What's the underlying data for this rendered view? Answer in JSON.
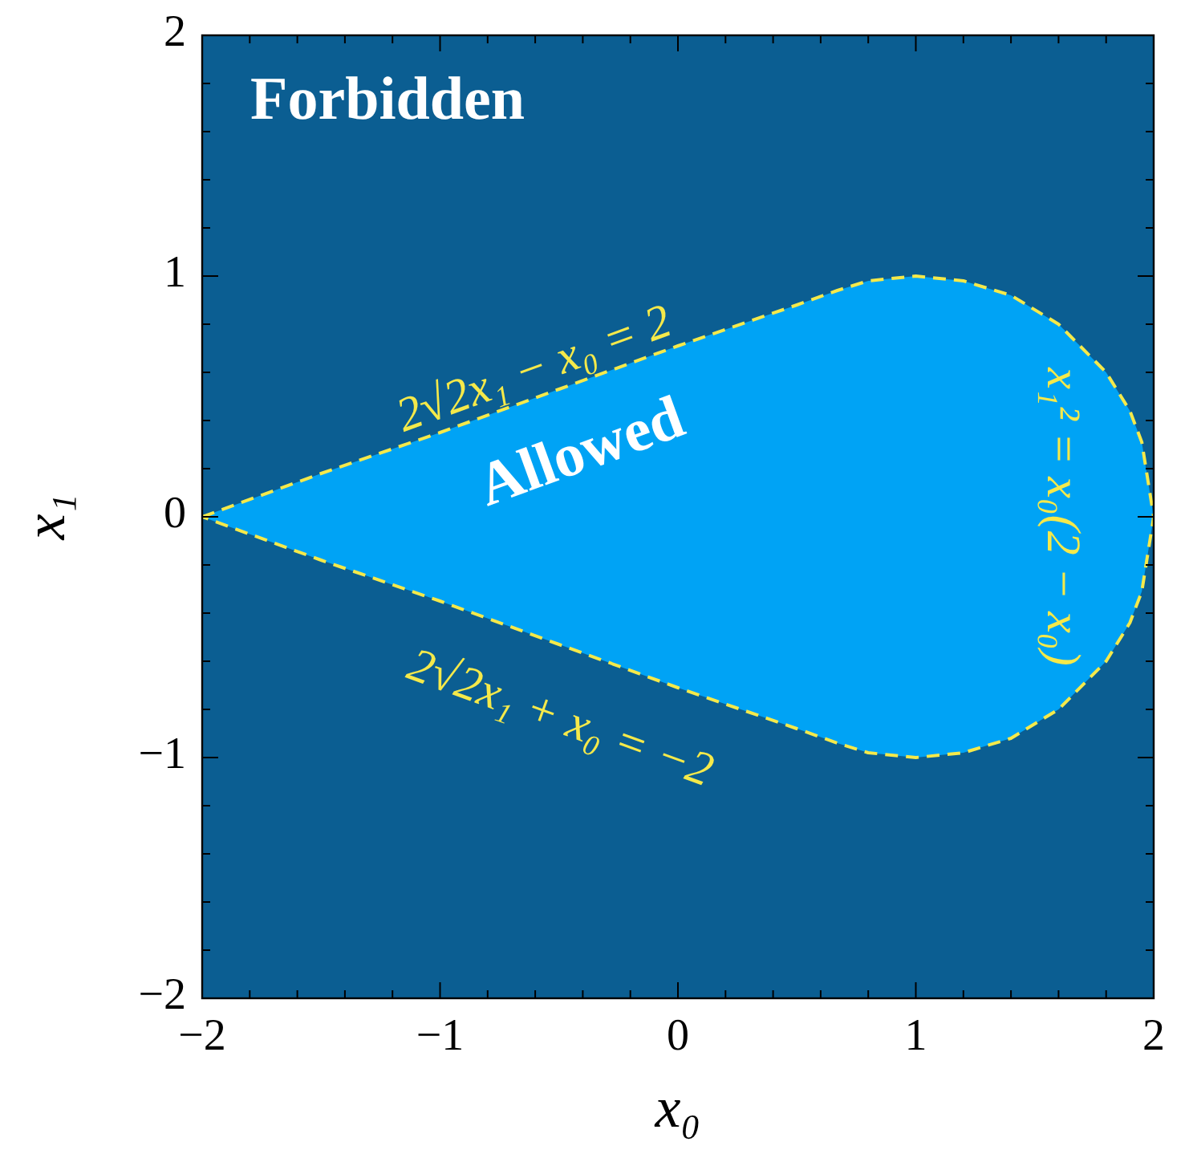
{
  "chart_data": {
    "type": "area",
    "xlabel": "x₀",
    "ylabel": "x₁",
    "series": [
      {
        "color": "#00a3f5",
        "line_style": "dashed",
        "x": [
          -2,
          -1.5,
          -1,
          -0.5,
          0,
          0.5,
          0.67,
          0.8,
          1,
          1.2,
          1.4,
          1.6,
          1.8,
          1.9,
          1.95,
          2,
          1.95,
          1.9,
          1.8,
          1.6,
          1.4,
          1.2,
          1,
          0.8,
          0.67,
          0.5,
          0,
          -0.5,
          -1,
          -1.5,
          -2
        ],
        "values": [
          0,
          0.18,
          0.35,
          0.53,
          0.71,
          0.88,
          0.94,
          0.98,
          1,
          0.98,
          0.92,
          0.8,
          0.6,
          0.44,
          0.31,
          0,
          -0.31,
          -0.44,
          -0.6,
          -0.8,
          -0.92,
          -0.98,
          -1,
          -0.98,
          -0.94,
          -0.88,
          -0.71,
          -0.53,
          -0.35,
          -0.18,
          0
        ]
      }
    ],
    "bands": [
      {
        "axis": "y",
        "from": -2,
        "to": 2,
        "label": "Forbidden",
        "color": "#0b5e92"
      }
    ],
    "annotations": [
      "Allowed",
      "2√2x₁ − x₀ = 2",
      "2√2x₁ + x₀ = −2",
      "x₁² = x₀(2 − x₀)"
    ],
    "xlim": [
      -2,
      2
    ],
    "ylim": [
      -2,
      2
    ],
    "xticks": [
      {
        "value": -2,
        "label": "−2"
      },
      {
        "value": -1.8,
        "label": null
      },
      {
        "value": -1.6,
        "label": null
      },
      {
        "value": -1.4,
        "label": null
      },
      {
        "value": -1.2,
        "label": null
      },
      {
        "value": -1,
        "label": "−1"
      },
      {
        "value": -0.8,
        "label": null
      },
      {
        "value": -0.6,
        "label": null
      },
      {
        "value": -0.4,
        "label": null
      },
      {
        "value": -0.2,
        "label": null
      },
      0,
      {
        "value": 0.2,
        "label": null
      },
      {
        "value": 0.4,
        "label": null
      },
      {
        "value": 0.6,
        "label": null
      },
      {
        "value": 0.8,
        "label": null
      },
      1,
      {
        "value": 1.2,
        "label": null
      },
      {
        "value": 1.4,
        "label": null
      },
      {
        "value": 1.6,
        "label": null
      },
      {
        "value": 1.8,
        "label": null
      },
      2
    ],
    "yticks": [
      {
        "value": -2,
        "label": "−2"
      },
      {
        "value": -1.8,
        "label": null
      },
      {
        "value": -1.6,
        "label": null
      },
      {
        "value": -1.4,
        "label": null
      },
      {
        "value": -1.2,
        "label": null
      },
      {
        "value": -1,
        "label": "−1"
      },
      {
        "value": -0.8,
        "label": null
      },
      {
        "value": -0.6,
        "label": null
      },
      {
        "value": -0.4,
        "label": null
      },
      {
        "value": -0.2,
        "label": null
      },
      0,
      {
        "value": 0.2,
        "label": null
      },
      {
        "value": 0.4,
        "label": null
      },
      {
        "value": 0.6,
        "label": null
      },
      {
        "value": 0.8,
        "label": null
      },
      1,
      {
        "value": 1.2,
        "label": null
      },
      {
        "value": 1.4,
        "label": null
      },
      {
        "value": 1.6,
        "label": null
      },
      {
        "value": 1.8,
        "label": null
      },
      2
    ],
    "grid": false
  }
}
